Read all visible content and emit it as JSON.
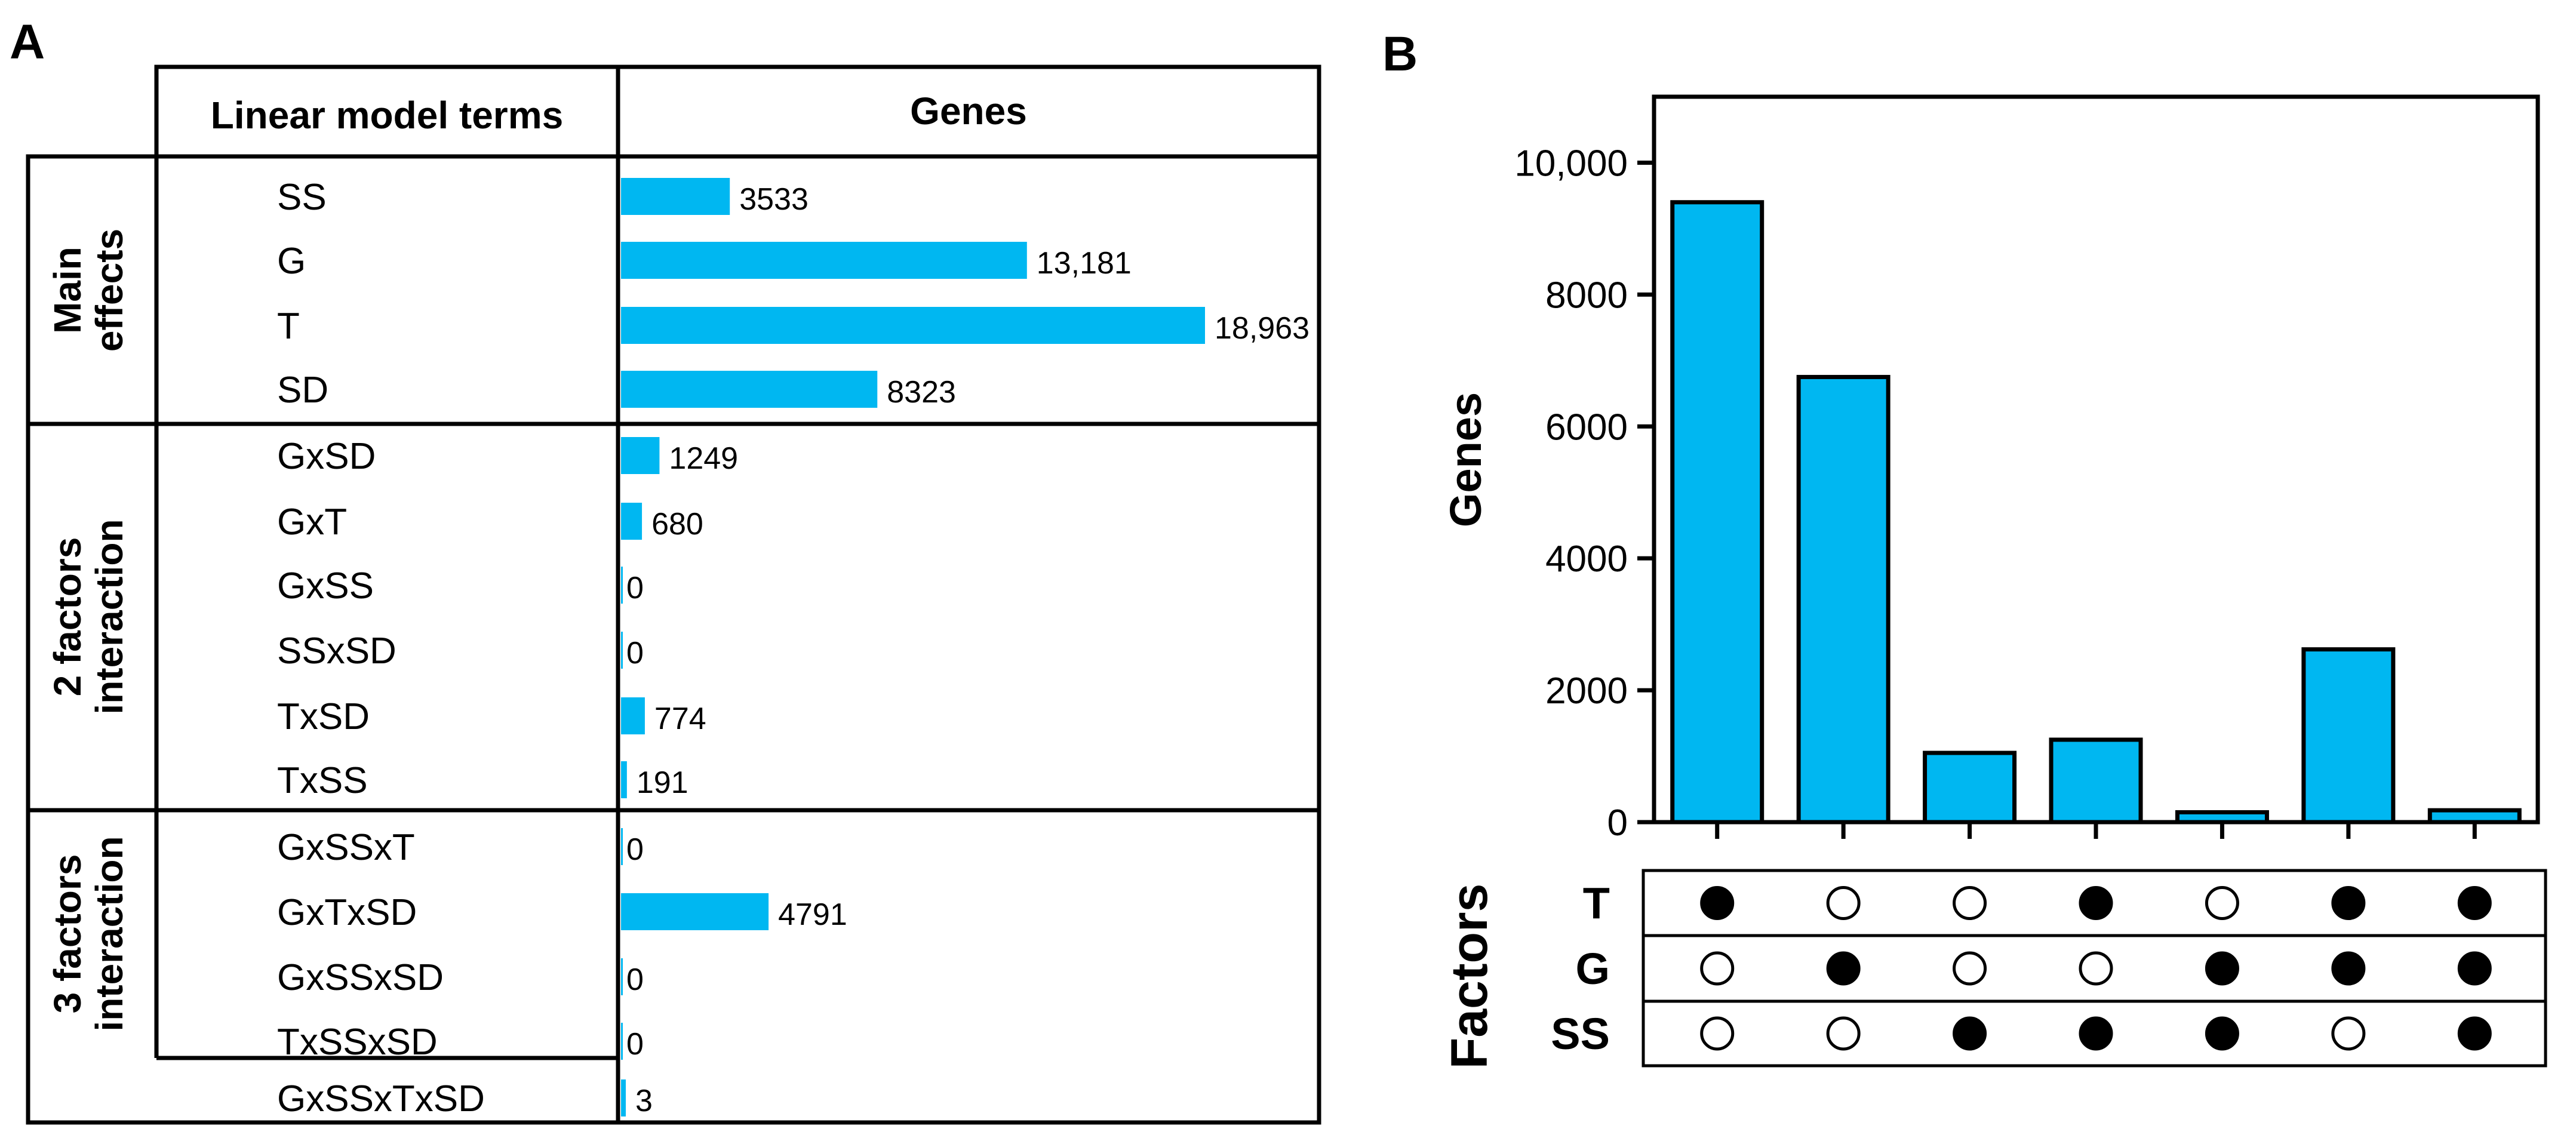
{
  "panel_a": {
    "letter": "A",
    "header_terms": "Linear model terms",
    "header_genes": "Genes",
    "bar_color": "#00b7f1",
    "groups": [
      {
        "label_lines": [
          "Main",
          "effects"
        ]
      },
      {
        "label_lines": [
          "2 factors",
          "interaction"
        ]
      },
      {
        "label_lines": [
          "3 factors",
          "interaction"
        ]
      }
    ]
  },
  "panel_b": {
    "letter": "B",
    "factors_label": "Factors",
    "bar_color": "#00b7f1"
  },
  "chart_data": [
    {
      "type": "bar",
      "orientation": "horizontal",
      "title": "",
      "xlabel": "Genes",
      "ylabel": "Linear model terms",
      "xlim": [
        0,
        18963
      ],
      "categories": [
        "SS",
        "G",
        "T",
        "SD",
        "GxSD",
        "GxT",
        "GxSS",
        "SSxSD",
        "TxSD",
        "TxSS",
        "GxSSxT",
        "GxTxSD",
        "GxSSxSD",
        "TxSSxSD",
        "GxSSxTxSD"
      ],
      "values": [
        3533,
        13181,
        18963,
        8323,
        1249,
        680,
        0,
        0,
        774,
        191,
        0,
        4791,
        0,
        0,
        3
      ],
      "value_labels": [
        "3533",
        "13,181",
        "18,963",
        "8323",
        "1249",
        "680",
        "0",
        "0",
        "774",
        "191",
        "0",
        "4791",
        "0",
        "0",
        "3"
      ],
      "groups": [
        {
          "name": "Main effects",
          "categories": [
            "SS",
            "G",
            "T",
            "SD"
          ]
        },
        {
          "name": "2 factors interaction",
          "categories": [
            "GxSD",
            "GxT",
            "GxSS",
            "SSxSD",
            "TxSD",
            "TxSS"
          ]
        },
        {
          "name": "3 factors interaction",
          "categories": [
            "GxSSxT",
            "GxTxSD",
            "GxSSxSD",
            "TxSSxSD"
          ]
        },
        {
          "name": "",
          "categories": [
            "GxSSxTxSD"
          ]
        }
      ]
    },
    {
      "type": "bar",
      "title": "",
      "xlabel": "Factors",
      "ylabel": "Genes",
      "ylim": [
        0,
        11000
      ],
      "yticks": [
        0,
        2000,
        4000,
        6000,
        8000,
        10000
      ],
      "ytick_labels": [
        "0",
        "2000",
        "4000",
        "6000",
        "8000",
        "10,000"
      ],
      "values": [
        9400,
        6750,
        1050,
        1250,
        150,
        2620,
        180
      ],
      "factors": [
        "T",
        "G",
        "SS"
      ],
      "membership": [
        [
          true,
          false,
          false,
          true,
          false,
          true,
          true
        ],
        [
          false,
          true,
          false,
          false,
          true,
          true,
          true
        ],
        [
          false,
          false,
          true,
          true,
          true,
          false,
          true
        ]
      ]
    }
  ]
}
